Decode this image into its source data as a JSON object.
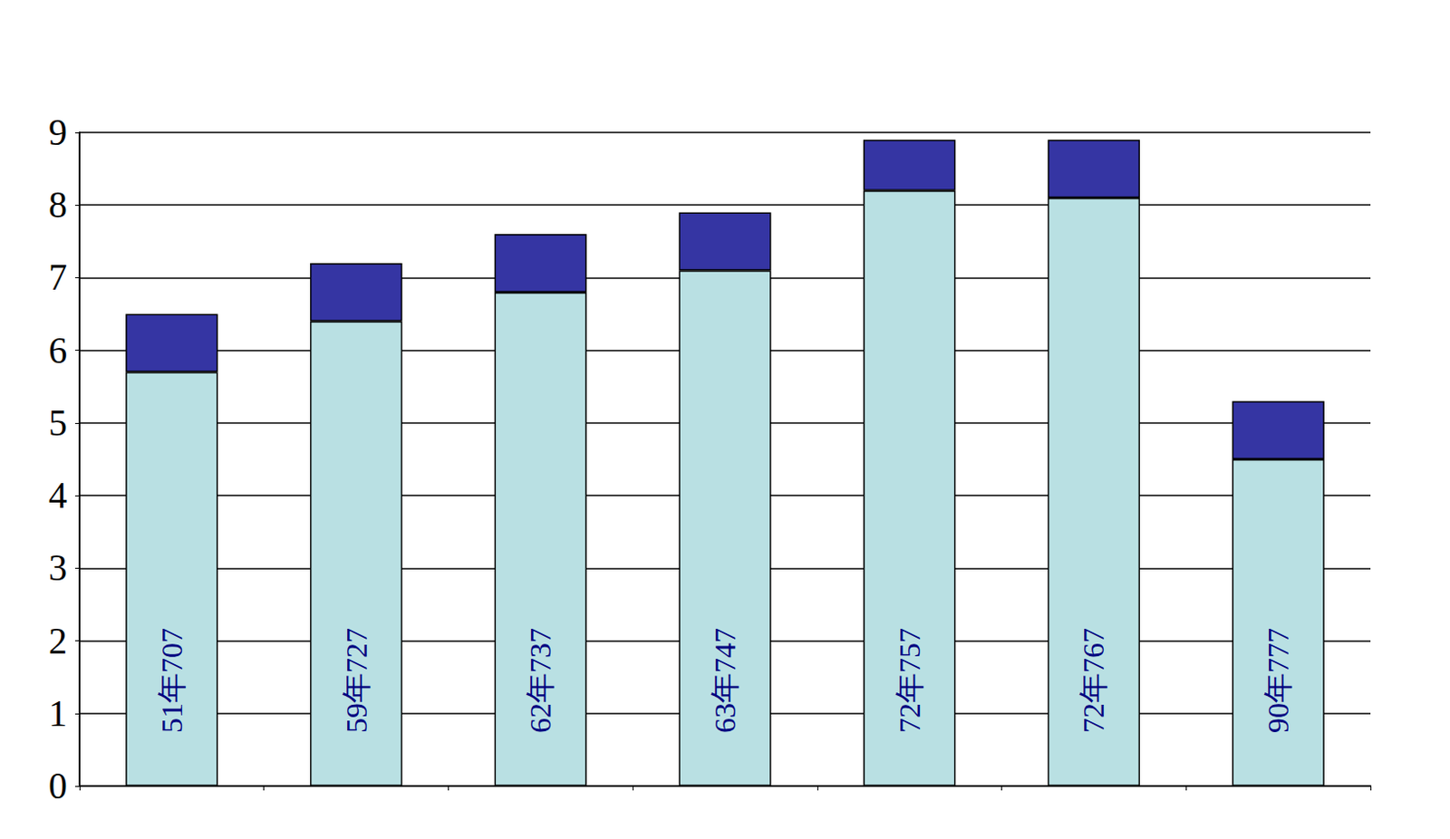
{
  "chart_data": {
    "type": "bar",
    "stacked": true,
    "grid": true,
    "tick_labels": "y",
    "categories": [
      "51年707",
      "59年727",
      "62年737",
      "63年747",
      "72年757",
      "72年767",
      "90年777"
    ],
    "series": [
      {
        "color": "#b9e0e3",
        "values": [
          5.7,
          6.4,
          6.8,
          7.1,
          8.2,
          8.1,
          4.5
        ]
      },
      {
        "color": "#3535a3",
        "values": [
          0.8,
          0.8,
          0.8,
          0.8,
          0.7,
          0.8,
          0.8
        ]
      }
    ],
    "ylim": [
      0,
      9
    ],
    "yticks": [
      0,
      1,
      2,
      3,
      4,
      5,
      6,
      7,
      8,
      9
    ]
  }
}
